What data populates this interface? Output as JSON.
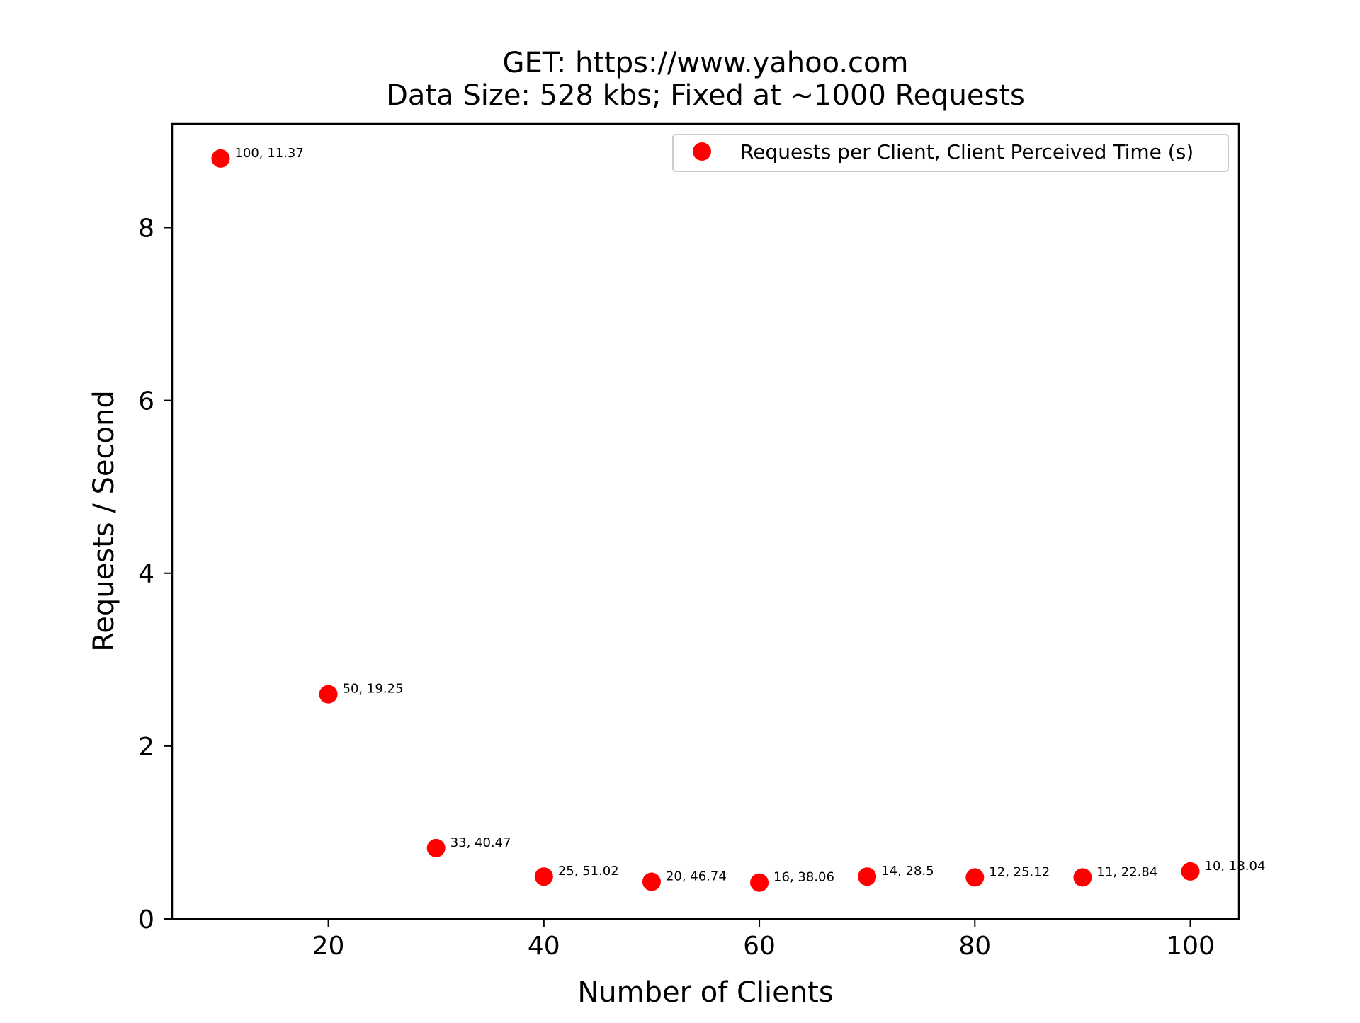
{
  "chart_data": {
    "type": "scatter",
    "title": [
      "GET: https://www.yahoo.com",
      "Data Size: 528 kbs; Fixed at ~1000 Requests"
    ],
    "xlabel": "Number of Clients",
    "ylabel": "Requests / Second",
    "xlim": [
      5.5,
      104.5
    ],
    "ylim": [
      0,
      9.2
    ],
    "xticks": [
      20,
      40,
      60,
      80,
      100
    ],
    "yticks": [
      0,
      2,
      4,
      6,
      8
    ],
    "grid": false,
    "legend": {
      "position": "top-right",
      "entries": [
        "Requests per Client, Client Perceived Time (s)"
      ]
    },
    "series": [
      {
        "name": "Requests per Client, Client Perceived Time (s)",
        "color": "#ff0000",
        "points": [
          {
            "x": 10,
            "y": 8.8,
            "label": "100, 11.37"
          },
          {
            "x": 20,
            "y": 2.6,
            "label": "50, 19.25"
          },
          {
            "x": 30,
            "y": 0.82,
            "label": "33, 40.47"
          },
          {
            "x": 40,
            "y": 0.49,
            "label": "25, 51.02"
          },
          {
            "x": 50,
            "y": 0.43,
            "label": "20, 46.74"
          },
          {
            "x": 60,
            "y": 0.42,
            "label": "16, 38.06"
          },
          {
            "x": 70,
            "y": 0.49,
            "label": "14, 28.5"
          },
          {
            "x": 80,
            "y": 0.48,
            "label": "12, 25.12"
          },
          {
            "x": 90,
            "y": 0.48,
            "label": "11, 22.84"
          },
          {
            "x": 100,
            "y": 0.55,
            "label": "10, 18.04"
          }
        ]
      }
    ]
  }
}
